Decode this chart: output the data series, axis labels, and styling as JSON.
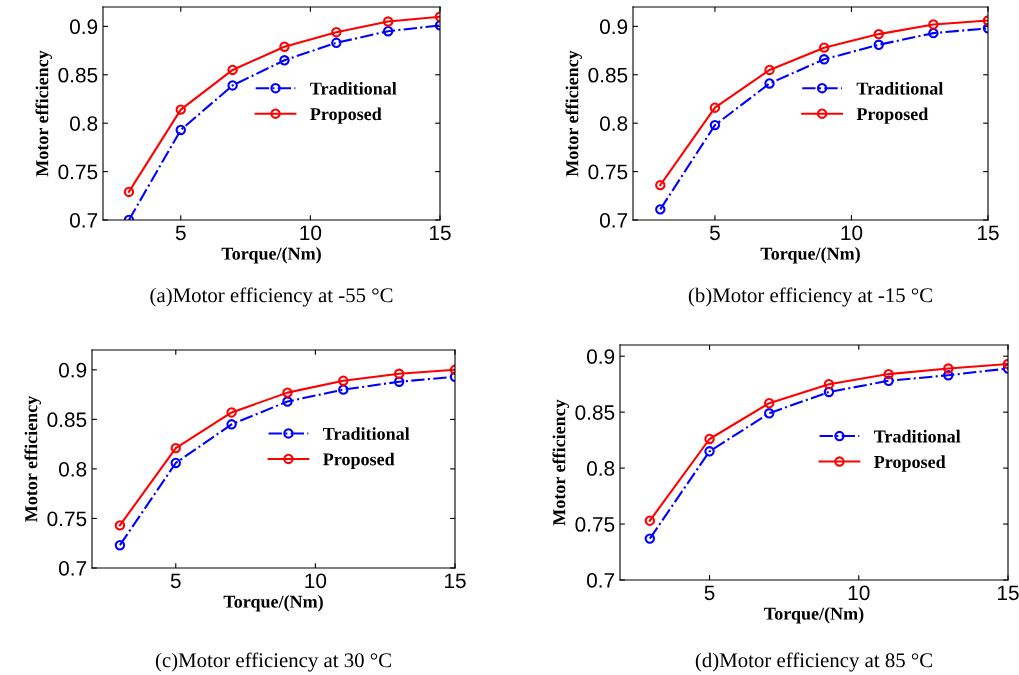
{
  "chart_data": [
    {
      "type": "line",
      "xlabel": "Torque/(Nm)",
      "ylabel": "Motor efficiency",
      "x": [
        3,
        5,
        7,
        9,
        11,
        13,
        15
      ],
      "xlim": [
        2,
        15
      ],
      "xticks": [
        5,
        10,
        15
      ],
      "ylim": [
        0.7,
        0.92
      ],
      "yticks": [
        0.7,
        0.75,
        0.8,
        0.85,
        0.9
      ],
      "grid": false,
      "legend": "right",
      "marker": "circle",
      "annotations": [
        "(a)Motor efficiency at -55 °C"
      ],
      "series": [
        {
          "name": "Traditional",
          "color": "#0000ff",
          "line_style": "dashdot",
          "values": [
            0.7,
            0.793,
            0.839,
            0.865,
            0.883,
            0.895,
            0.901
          ]
        },
        {
          "name": "Proposed",
          "color": "#ff0000",
          "line_style": "solid",
          "values": [
            0.729,
            0.814,
            0.855,
            0.879,
            0.894,
            0.905,
            0.91
          ]
        }
      ]
    },
    {
      "type": "line",
      "xlabel": "Torque/(Nm)",
      "ylabel": "Motor efficiency",
      "x": [
        3,
        5,
        7,
        9,
        11,
        13,
        15
      ],
      "xlim": [
        2,
        15
      ],
      "xticks": [
        5,
        10,
        15
      ],
      "ylim": [
        0.7,
        0.92
      ],
      "yticks": [
        0.7,
        0.75,
        0.8,
        0.85,
        0.9
      ],
      "grid": false,
      "legend": "right",
      "marker": "circle",
      "annotations": [
        "(b)Motor efficiency at -15 °C"
      ],
      "series": [
        {
          "name": "Traditional",
          "color": "#0000ff",
          "line_style": "dashdot",
          "values": [
            0.711,
            0.798,
            0.841,
            0.866,
            0.881,
            0.893,
            0.898
          ]
        },
        {
          "name": "Proposed",
          "color": "#ff0000",
          "line_style": "solid",
          "values": [
            0.736,
            0.816,
            0.855,
            0.878,
            0.892,
            0.902,
            0.906
          ]
        }
      ]
    },
    {
      "type": "line",
      "xlabel": "Torque/(Nm)",
      "ylabel": "Motor efficiency",
      "x": [
        3,
        5,
        7,
        9,
        11,
        13,
        15
      ],
      "xlim": [
        2,
        15
      ],
      "xticks": [
        5,
        10,
        15
      ],
      "ylim": [
        0.7,
        0.92
      ],
      "yticks": [
        0.7,
        0.75,
        0.8,
        0.85,
        0.9
      ],
      "grid": false,
      "legend": "right",
      "marker": "circle",
      "annotations": [
        "(c)Motor efficiency at 30 °C"
      ],
      "series": [
        {
          "name": "Traditional",
          "color": "#0000ff",
          "line_style": "dashdot",
          "values": [
            0.723,
            0.806,
            0.845,
            0.868,
            0.88,
            0.888,
            0.893
          ]
        },
        {
          "name": "Proposed",
          "color": "#ff0000",
          "line_style": "solid",
          "values": [
            0.743,
            0.821,
            0.857,
            0.877,
            0.889,
            0.896,
            0.9
          ]
        }
      ]
    },
    {
      "type": "line",
      "xlabel": "Torque/(Nm)",
      "ylabel": "Motor efficiency",
      "x": [
        3,
        5,
        7,
        9,
        11,
        13,
        15
      ],
      "xlim": [
        2,
        15
      ],
      "xticks": [
        5,
        10,
        15
      ],
      "ylim": [
        0.7,
        0.91
      ],
      "yticks": [
        0.7,
        0.75,
        0.8,
        0.85,
        0.9
      ],
      "grid": false,
      "legend": "right",
      "marker": "circle",
      "annotations": [
        "(d)Motor efficiency at 85 °C"
      ],
      "series": [
        {
          "name": "Traditional",
          "color": "#0000ff",
          "line_style": "dashdot",
          "values": [
            0.737,
            0.815,
            0.849,
            0.868,
            0.878,
            0.883,
            0.889
          ]
        },
        {
          "name": "Proposed",
          "color": "#ff0000",
          "line_style": "solid",
          "values": [
            0.753,
            0.826,
            0.858,
            0.875,
            0.884,
            0.889,
            0.893
          ]
        }
      ]
    }
  ]
}
